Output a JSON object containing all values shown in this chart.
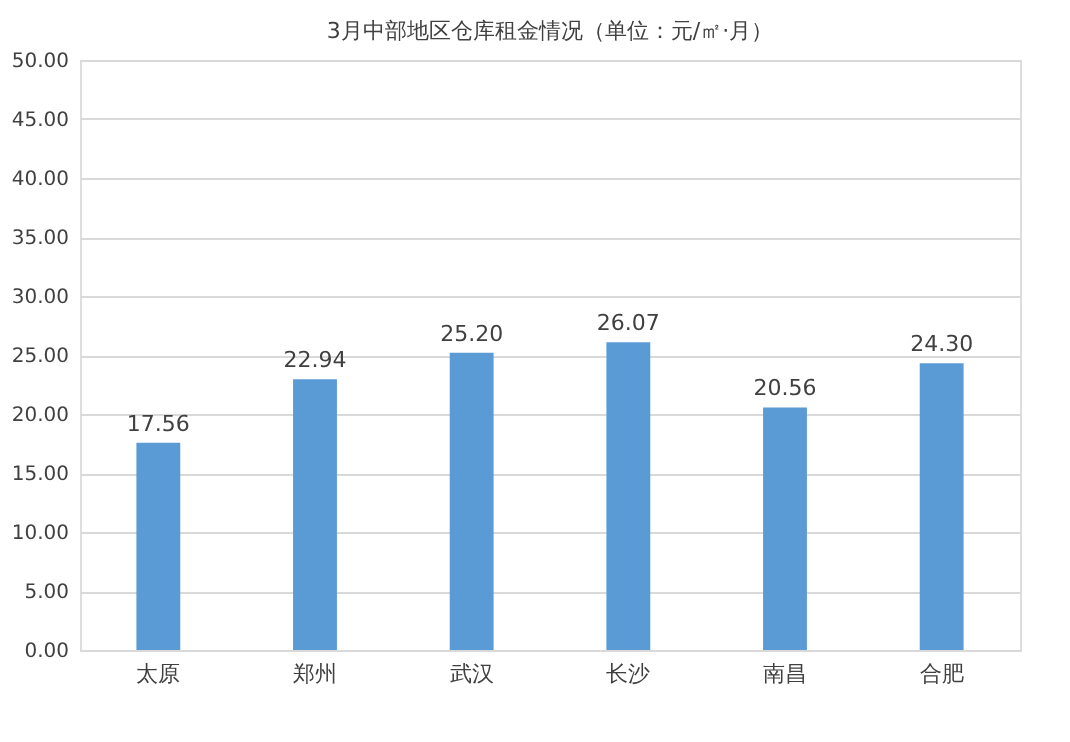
{
  "chart_data": {
    "type": "bar",
    "title": "3月中部地区仓库租金情况（单位：元/㎡·月）",
    "categories": [
      "太原",
      "郑州",
      "武汉",
      "长沙",
      "南昌",
      "合肥"
    ],
    "values": [
      17.56,
      22.94,
      25.2,
      26.07,
      20.56,
      24.3
    ],
    "value_labels": [
      "17.56",
      "22.94",
      "25.20",
      "26.07",
      "20.56",
      "24.30"
    ],
    "color": "#5b9bd5",
    "ylim": [
      0,
      50
    ],
    "yticks": [
      {
        "value": 0,
        "label": "0.00"
      },
      {
        "value": 5,
        "label": "5.00"
      },
      {
        "value": 10,
        "label": "10.00"
      },
      {
        "value": 15,
        "label": "15.00"
      },
      {
        "value": 20,
        "label": "20.00"
      },
      {
        "value": 25,
        "label": "25.00"
      },
      {
        "value": 30,
        "label": "30.00"
      },
      {
        "value": 35,
        "label": "35.00"
      },
      {
        "value": 40,
        "label": "40.00"
      },
      {
        "value": 45,
        "label": "45.00"
      },
      {
        "value": 50,
        "label": "50.00"
      }
    ],
    "grid": "y"
  }
}
